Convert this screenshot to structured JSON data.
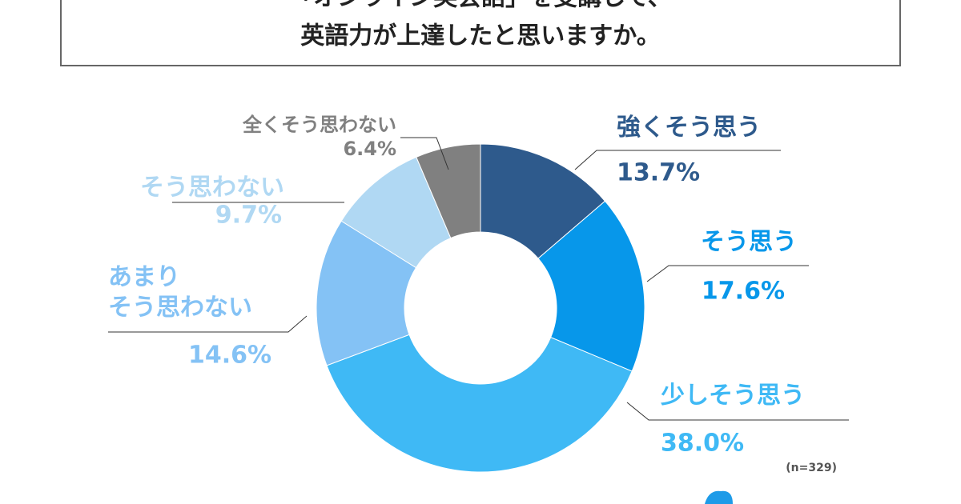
{
  "chart_data": {
    "type": "donut",
    "title_lines": [
      "「オンライン英会話」を受講して、",
      "英語力が上達したと思いますか。"
    ],
    "categories": [
      "強くそう思う",
      "そう思う",
      "少しそう思う",
      "あまり\nそう思わない",
      "そう思わない",
      "全くそう思わない"
    ],
    "values": [
      13.7,
      17.6,
      38.0,
      14.6,
      9.7,
      6.4
    ],
    "value_labels": [
      "13.7%",
      "17.6%",
      "38.0%",
      "14.6%",
      "9.7%",
      "6.4%"
    ],
    "colors": [
      "#2e5a8c",
      "#0797ea",
      "#3fb9f5",
      "#84c2f5",
      "#b0d8f3",
      "#808080"
    ],
    "label_colors": [
      "#2e5a8c",
      "#0797ea",
      "#3fb9f5",
      "#84c2f5",
      "#b0d8f3",
      "#808080"
    ],
    "annotation": "(n=329)"
  }
}
